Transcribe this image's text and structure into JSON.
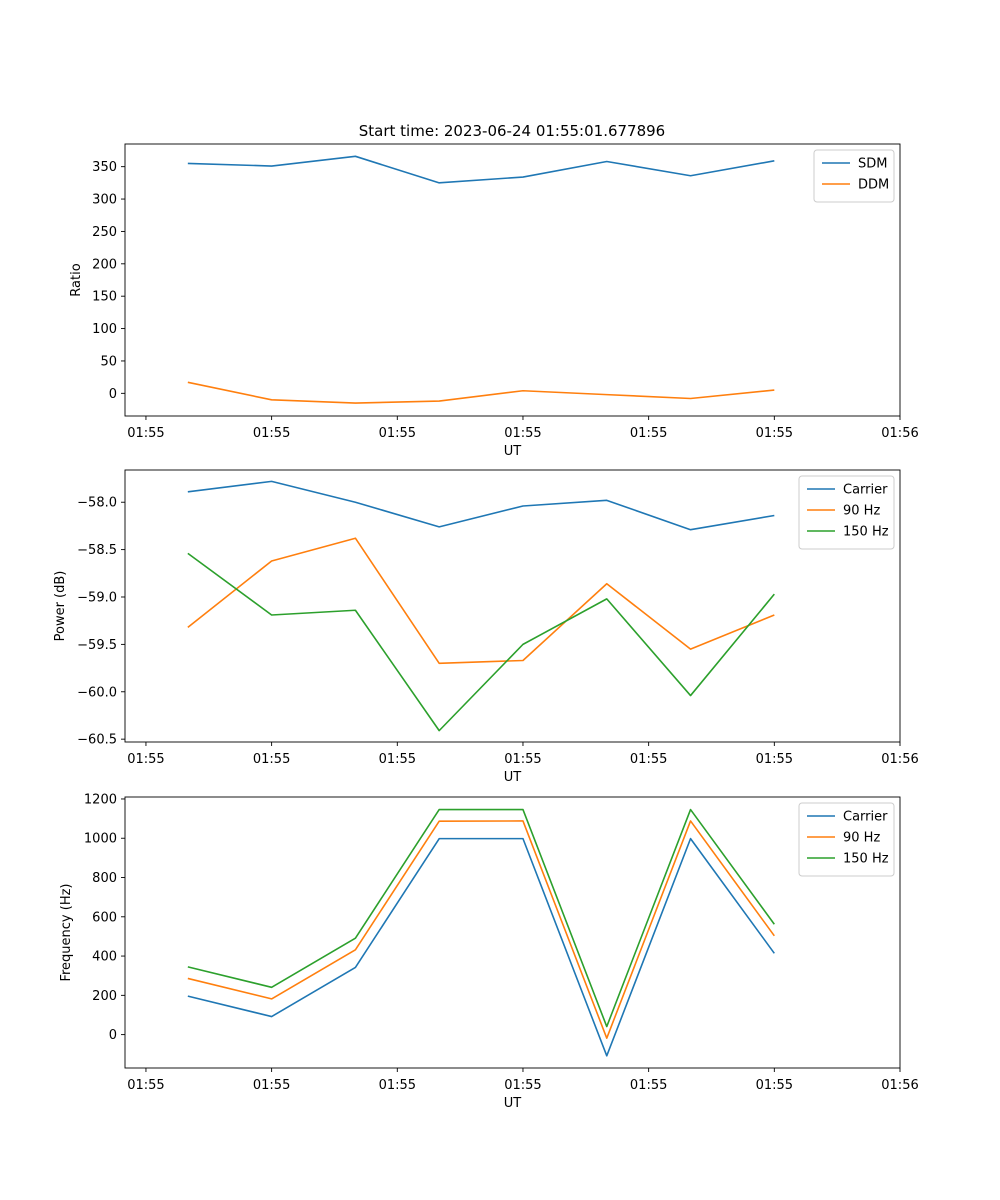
{
  "figure": {
    "title": "Start time: 2023-06-24 01:55:01.677896"
  },
  "chart_data": [
    {
      "type": "line",
      "xlabel": "UT",
      "ylabel": "Ratio",
      "x_tick_labels": [
        "01:55",
        "01:55",
        "01:55",
        "01:55",
        "01:55",
        "01:55",
        "01:56"
      ],
      "x_ticks_index": [
        -0.5,
        1.0,
        2.5,
        4.0,
        5.5,
        7.0,
        8.5
      ],
      "xlim": [
        -0.75,
        8.5
      ],
      "ylim": [
        -35,
        385
      ],
      "y_ticks": [
        0,
        50,
        100,
        150,
        200,
        250,
        300,
        350
      ],
      "y_tick_labels": [
        "0",
        "50",
        "100",
        "150",
        "200",
        "250",
        "300",
        "350"
      ],
      "legend_position": "top-right",
      "x": [
        0,
        1,
        2,
        3,
        4,
        5,
        6,
        7
      ],
      "series": [
        {
          "name": "SDM",
          "color": "#1f77b4",
          "values": [
            355,
            351,
            366,
            325,
            334,
            358,
            336,
            359
          ]
        },
        {
          "name": "DDM",
          "color": "#ff7f0e",
          "values": [
            17,
            -10,
            -15,
            -12,
            4,
            -2,
            -8,
            5
          ]
        }
      ]
    },
    {
      "type": "line",
      "xlabel": "UT",
      "ylabel": "Power (dB)",
      "x_tick_labels": [
        "01:55",
        "01:55",
        "01:55",
        "01:55",
        "01:55",
        "01:55",
        "01:56"
      ],
      "x_ticks_index": [
        -0.5,
        1.0,
        2.5,
        4.0,
        5.5,
        7.0,
        8.5
      ],
      "xlim": [
        -0.75,
        8.5
      ],
      "ylim": [
        -60.53,
        -57.66
      ],
      "y_ticks": [
        -60.5,
        -60.0,
        -59.5,
        -59.0,
        -58.5,
        -58.0
      ],
      "y_tick_labels": [
        "−60.5",
        "−60.0",
        "−59.5",
        "−59.0",
        "−58.5",
        "−58.0"
      ],
      "legend_position": "top-right",
      "x": [
        0,
        1,
        2,
        3,
        4,
        5,
        6,
        7
      ],
      "series": [
        {
          "name": "Carrier",
          "color": "#1f77b4",
          "values": [
            -57.89,
            -57.78,
            -58.0,
            -58.26,
            -58.04,
            -57.98,
            -58.29,
            -58.14
          ]
        },
        {
          "name": "90 Hz",
          "color": "#ff7f0e",
          "values": [
            -59.32,
            -58.62,
            -58.38,
            -59.7,
            -59.67,
            -58.86,
            -59.55,
            -59.19
          ]
        },
        {
          "name": "150 Hz",
          "color": "#2ca02c",
          "values": [
            -58.54,
            -59.19,
            -59.14,
            -60.41,
            -59.5,
            -59.02,
            -60.04,
            -58.97
          ]
        }
      ]
    },
    {
      "type": "line",
      "xlabel": "UT",
      "ylabel": "Frequency (Hz)",
      "x_tick_labels": [
        "01:55",
        "01:55",
        "01:55",
        "01:55",
        "01:55",
        "01:55",
        "01:56"
      ],
      "x_ticks_index": [
        -0.5,
        1.0,
        2.5,
        4.0,
        5.5,
        7.0,
        8.5
      ],
      "xlim": [
        -0.75,
        8.5
      ],
      "ylim": [
        -170,
        1210
      ],
      "y_ticks": [
        0,
        200,
        400,
        600,
        800,
        1000,
        1200
      ],
      "y_tick_labels": [
        "0",
        "200",
        "400",
        "600",
        "800",
        "1000",
        "1200"
      ],
      "legend_position": "top-right",
      "x": [
        0,
        1,
        2,
        3,
        4,
        5,
        6,
        7
      ],
      "series": [
        {
          "name": "Carrier",
          "color": "#1f77b4",
          "values": [
            196,
            92,
            342,
            998,
            998,
            -108,
            998,
            414
          ]
        },
        {
          "name": "90 Hz",
          "color": "#ff7f0e",
          "values": [
            286,
            182,
            432,
            1087,
            1088,
            -18,
            1088,
            503
          ]
        },
        {
          "name": "150 Hz",
          "color": "#2ca02c",
          "values": [
            345,
            241,
            491,
            1146,
            1146,
            41,
            1146,
            562
          ]
        }
      ]
    }
  ]
}
